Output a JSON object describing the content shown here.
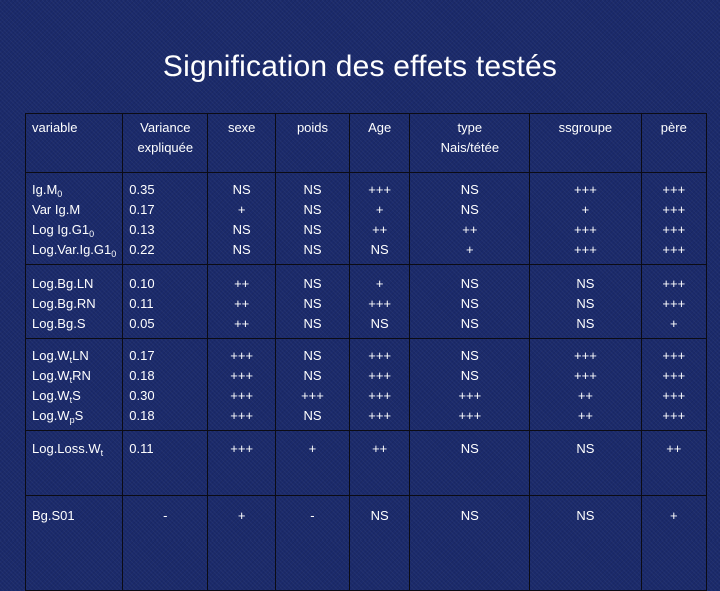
{
  "title": "Signification des effets testés",
  "colors": {
    "background": "#1b2a6b",
    "text": "#ffffff",
    "grid": "#0b0b14"
  },
  "headers": [
    "variable",
    "Variance expliquée",
    "sexe",
    "poids",
    "Age",
    "type Nais/tétée",
    "ssgroupe",
    "père"
  ],
  "header_lines": {
    "variance": [
      "Variance",
      "expliquée"
    ],
    "type": [
      "type",
      "Nais/tétée"
    ]
  },
  "groups": [
    {
      "variables": [
        {
          "base": "Ig.M",
          "sub": "0"
        },
        {
          "base": "Var Ig.M",
          "sub": ""
        },
        {
          "base": "Log Ig.G1",
          "sub": "0"
        },
        {
          "base": "Log.Var.Ig.G1",
          "sub": "0"
        }
      ],
      "variance": [
        "0.35",
        "0.17",
        "0.13",
        "0.22"
      ],
      "sexe": [
        "NS",
        "+",
        "NS",
        "NS"
      ],
      "poids": [
        "NS",
        "NS",
        "NS",
        "NS"
      ],
      "age": [
        "+++",
        "+",
        "++",
        "NS"
      ],
      "type": [
        "NS",
        "NS",
        "++",
        "+"
      ],
      "ssgroupe": [
        "+++",
        "+",
        "+++",
        "+++"
      ],
      "pere": [
        "+++",
        "+++",
        "+++",
        "+++"
      ]
    },
    {
      "variables": [
        {
          "base": "Log.Bg.LN",
          "sub": ""
        },
        {
          "base": "Log.Bg.RN",
          "sub": ""
        },
        {
          "base": "Log.Bg.S",
          "sub": ""
        }
      ],
      "variance": [
        "0.10",
        "0.11",
        "0.05"
      ],
      "sexe": [
        "++",
        "++",
        "++"
      ],
      "poids": [
        "NS",
        "NS",
        "NS"
      ],
      "age": [
        "+",
        "+++",
        "NS"
      ],
      "type": [
        "NS",
        "NS",
        "NS"
      ],
      "ssgroupe": [
        "NS",
        "NS",
        "NS"
      ],
      "pere": [
        "+++",
        "+++",
        "+"
      ]
    },
    {
      "variables": [
        {
          "base": "Log.W",
          "sub": "t",
          "tail": "LN"
        },
        {
          "base": "Log.W",
          "sub": "t",
          "tail": "RN"
        },
        {
          "base": "Log.W",
          "sub": "t",
          "tail": "S"
        },
        {
          "base": "Log.W",
          "sub": "p",
          "tail": "S"
        }
      ],
      "variance": [
        "0.17",
        "0.18",
        "0.30",
        "0.18"
      ],
      "sexe": [
        "+++",
        "+++",
        "+++",
        "+++"
      ],
      "poids": [
        "NS",
        "NS",
        "+++",
        "NS"
      ],
      "age": [
        "+++",
        "+++",
        "+++",
        "+++"
      ],
      "type": [
        "NS",
        "NS",
        "+++",
        "+++"
      ],
      "ssgroupe": [
        "+++",
        "+++",
        "++",
        "++"
      ],
      "pere": [
        "+++",
        "+++",
        "+++",
        "+++"
      ]
    },
    {
      "variables": [
        {
          "base": "Log.Loss.W",
          "sub": "t"
        }
      ],
      "variance": [
        "0.11"
      ],
      "sexe": [
        "+++"
      ],
      "poids": [
        "+"
      ],
      "age": [
        "++"
      ],
      "type": [
        "NS"
      ],
      "ssgroupe": [
        "NS"
      ],
      "pere": [
        "++"
      ]
    },
    {
      "variables": [
        {
          "base": "Bg.S01",
          "sub": ""
        }
      ],
      "variance": [
        "-"
      ],
      "sexe": [
        "+"
      ],
      "poids": [
        "-"
      ],
      "age": [
        "NS"
      ],
      "type": [
        "NS"
      ],
      "ssgroupe": [
        "NS"
      ],
      "pere": [
        "+"
      ]
    }
  ]
}
